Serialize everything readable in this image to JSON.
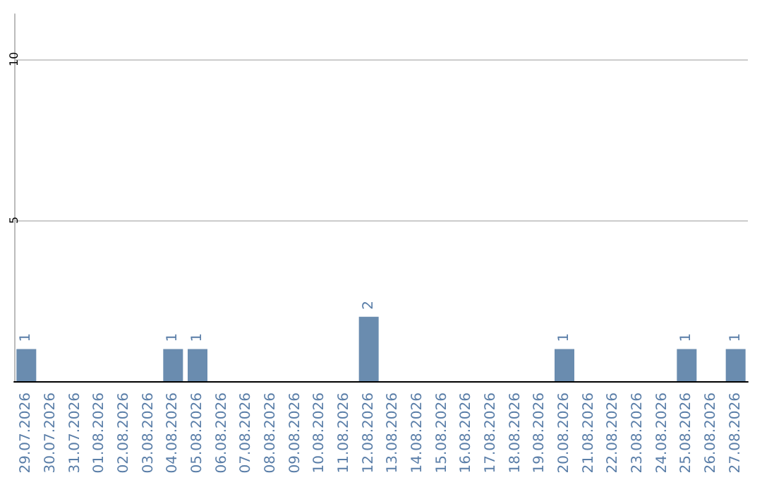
{
  "chart_data": {
    "type": "bar",
    "categories": [
      "29.07.2026",
      "30.07.2026",
      "31.07.2026",
      "01.08.2026",
      "02.08.2026",
      "03.08.2026",
      "04.08.2026",
      "05.08.2026",
      "06.08.2026",
      "07.08.2026",
      "08.08.2026",
      "09.08.2026",
      "10.08.2026",
      "11.08.2026",
      "12.08.2026",
      "13.08.2026",
      "14.08.2026",
      "15.08.2026",
      "16.08.2026",
      "17.08.2026",
      "18.08.2026",
      "19.08.2026",
      "20.08.2026",
      "21.08.2026",
      "22.08.2026",
      "23.08.2026",
      "24.08.2026",
      "25.08.2026",
      "26.08.2026",
      "27.08.2026"
    ],
    "values": [
      1,
      0,
      0,
      0,
      0,
      0,
      1,
      1,
      0,
      0,
      0,
      0,
      0,
      0,
      2,
      0,
      0,
      0,
      0,
      0,
      0,
      0,
      1,
      0,
      0,
      0,
      0,
      1,
      0,
      1
    ],
    "color": "#6a8caf",
    "value_labels": [
      "1",
      null,
      null,
      null,
      null,
      null,
      "1",
      "1",
      null,
      null,
      null,
      null,
      null,
      null,
      "2",
      null,
      null,
      null,
      null,
      null,
      null,
      null,
      "1",
      null,
      null,
      null,
      null,
      "1",
      null,
      "1"
    ],
    "ylim": [
      0,
      11.4
    ],
    "yticks": [
      5,
      10
    ],
    "grid": "y"
  }
}
